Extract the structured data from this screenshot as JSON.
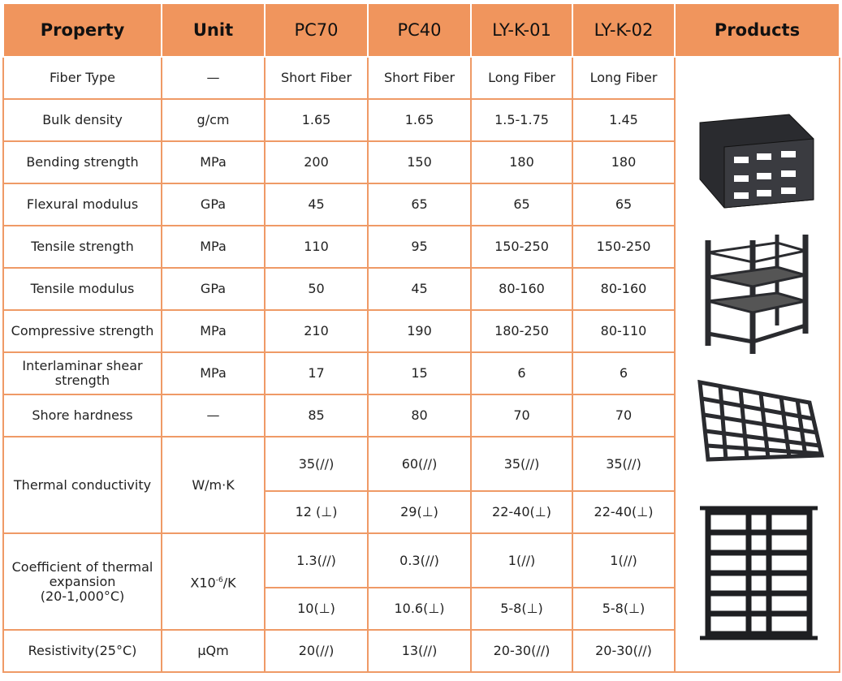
{
  "table": {
    "header": [
      "Property",
      "Unit",
      "PC70",
      "PC40",
      "LY-K-01",
      "LY-K-02",
      "Products"
    ],
    "rows": [
      {
        "property": "Fiber Type",
        "unit": "—",
        "values": [
          "Short Fiber",
          "Short Fiber",
          "Long Fiber",
          "Long Fiber"
        ]
      },
      {
        "property": "Bulk density",
        "unit": "g/cm",
        "values": [
          "1.65",
          "1.65",
          "1.5-1.75",
          "1.45"
        ]
      },
      {
        "property": "Bending strength",
        "unit": "MPa",
        "values": [
          "200",
          "150",
          "180",
          "180"
        ]
      },
      {
        "property": "Flexural modulus",
        "unit": "GPa",
        "values": [
          "45",
          "65",
          "65",
          "65"
        ]
      },
      {
        "property": "Tensile strength",
        "unit": "MPa",
        "values": [
          "110",
          "95",
          "150-250",
          "150-250"
        ]
      },
      {
        "property": "Tensile modulus",
        "unit": "GPa",
        "values": [
          "50",
          "45",
          "80-160",
          "80-160"
        ]
      },
      {
        "property": "Compressive strength",
        "unit": "MPa",
        "values": [
          "210",
          "190",
          "180-250",
          "80-110"
        ]
      },
      {
        "property": "Interlaminar shear strength",
        "unit": "MPa",
        "values": [
          "17",
          "15",
          "6",
          "6"
        ]
      },
      {
        "property": "Shore hardness",
        "unit": "—",
        "values": [
          "85",
          "80",
          "70",
          "70"
        ]
      },
      {
        "property": "Thermal conductivity",
        "unit": "W/m·K",
        "subrows": [
          [
            "35(//)",
            "60(//)",
            "35(//)",
            "35(//)"
          ],
          [
            "12 (⊥)",
            "29(⊥)",
            "22-40(⊥)",
            "22-40(⊥)"
          ]
        ]
      },
      {
        "property": "Coefficient of thermal expansion",
        "property_note": "(20-1,000°C)",
        "unit": {
          "base": "X10",
          "sup": "-6",
          "tail": "/K"
        },
        "subrows": [
          [
            "1.3(//)",
            "0.3(//)",
            "1(//)",
            "1(//)"
          ],
          [
            "10(⊥)",
            "10.6(⊥)",
            "5-8(⊥)",
            "5-8(⊥)"
          ]
        ]
      },
      {
        "property": "Resistivity(25°C)",
        "unit": "μQm",
        "values": [
          "20(//)",
          "13(//)",
          "20-30(//)",
          "20-30(//)"
        ]
      }
    ]
  }
}
